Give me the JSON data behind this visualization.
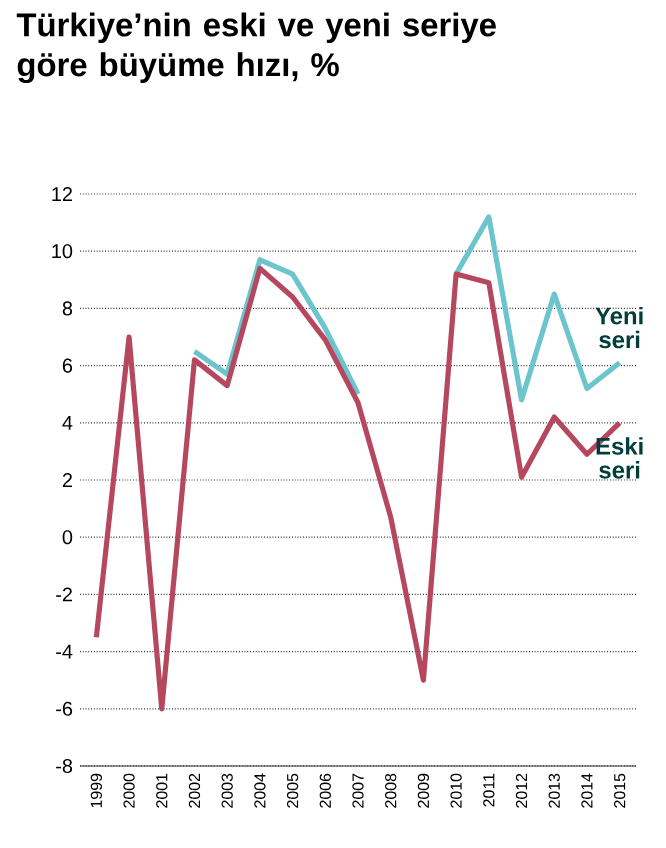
{
  "chart_data": {
    "type": "line",
    "title": "Türkiye’nin eski ve yeni seriye göre büyüme hızı, %",
    "categories": [
      "1999",
      "2000",
      "2001",
      "2002",
      "2003",
      "2004",
      "2005",
      "2006",
      "2007",
      "2008",
      "2009",
      "2010",
      "2011",
      "2012",
      "2013",
      "2014",
      "2015"
    ],
    "series": [
      {
        "name": "Yeni seri",
        "color": "#6cc5cc",
        "values": [
          null,
          null,
          null,
          6.5,
          5.7,
          9.7,
          9.2,
          7.3,
          5.0,
          null,
          null,
          9.2,
          11.2,
          4.8,
          8.5,
          5.2,
          6.1
        ]
      },
      {
        "name": "Eski seri",
        "color": "#b5485f",
        "values": [
          -3.5,
          7.0,
          -6.0,
          6.2,
          5.3,
          9.4,
          8.4,
          6.9,
          4.7,
          0.7,
          -5.0,
          9.2,
          8.9,
          2.1,
          4.2,
          2.9,
          4.0
        ]
      }
    ],
    "ylim": [
      -8,
      12
    ],
    "yticks": [
      -8,
      -6,
      -4,
      -2,
      0,
      2,
      4,
      6,
      8,
      10,
      12
    ],
    "grid": "y",
    "marker": "none",
    "line_style": "solid"
  }
}
